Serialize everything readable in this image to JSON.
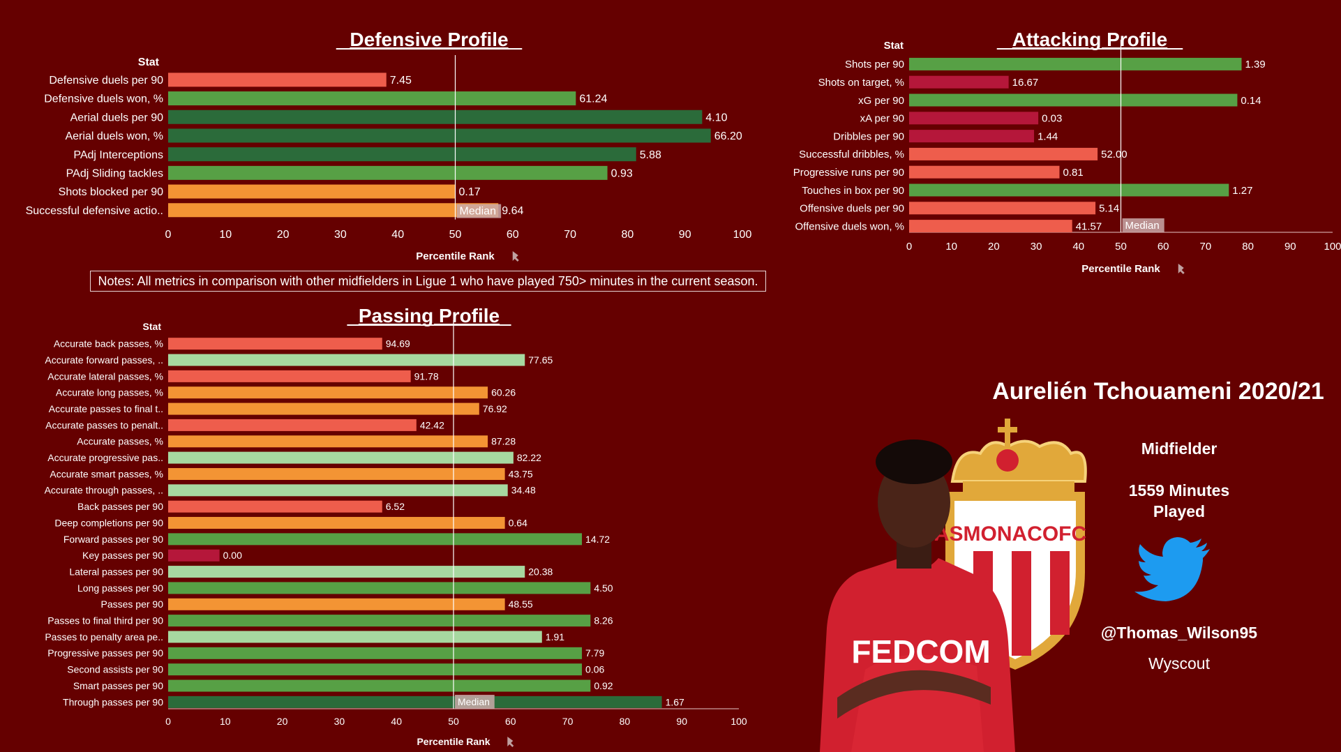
{
  "colors": {
    "background": "#650000",
    "dark_green": "#2b6b3a",
    "green": "#57a045",
    "light_green": "#a7d8a0",
    "orange": "#f39434",
    "salmon": "#ee5d4c",
    "crimson": "#b5173a",
    "median_line": "#ffffff"
  },
  "notes": "Notes: All metrics in comparison with other midfielders in Ligue 1 who have played 750> minutes in the current season.",
  "player": {
    "name": "Aurelién Tchouameni 2020/21",
    "position": "Midfielder",
    "minutes_line1": "1559 Minutes",
    "minutes_line2": "Played",
    "handle": "@Thomas_Wilson95",
    "source": "Wyscout",
    "club_crest_text": "ASMONACOFC",
    "shirt_sponsor": "FEDCOM",
    "twitter_icon": "twitter-bird-icon"
  },
  "chart_data": [
    {
      "id": "defensive",
      "type": "bar",
      "orientation": "horizontal",
      "title": "Defensive Profile",
      "category_header": "Stat",
      "xlabel": "Percentile Rank",
      "xlim": [
        0,
        100
      ],
      "xticks": [
        0,
        10,
        20,
        30,
        40,
        50,
        60,
        70,
        80,
        90,
        100
      ],
      "median_value": 50,
      "median_label": "Median",
      "grid": false,
      "rows": [
        {
          "label": "Defensive duels per 90",
          "percentile": 38,
          "value_label": "7.45",
          "color": "salmon"
        },
        {
          "label": "Defensive duels won, %",
          "percentile": 71,
          "value_label": "61.24",
          "color": "green"
        },
        {
          "label": "Aerial duels per 90",
          "percentile": 93,
          "value_label": "4.10",
          "color": "dark_green"
        },
        {
          "label": "Aerial duels won, %",
          "percentile": 94.5,
          "value_label": "66.20",
          "color": "dark_green"
        },
        {
          "label": "PAdj Interceptions",
          "percentile": 81.5,
          "value_label": "5.88",
          "color": "dark_green"
        },
        {
          "label": "PAdj Sliding tackles",
          "percentile": 76.5,
          "value_label": "0.93",
          "color": "green"
        },
        {
          "label": "Shots blocked per 90",
          "percentile": 50,
          "value_label": "0.17",
          "color": "orange"
        },
        {
          "label": "Successful defensive actio..",
          "percentile": 57.5,
          "value_label": "9.64",
          "color": "orange"
        }
      ]
    },
    {
      "id": "attacking",
      "type": "bar",
      "orientation": "horizontal",
      "title": "Attacking Profile",
      "category_header": "Stat",
      "xlabel": "Percentile Rank",
      "xlim": [
        0,
        100
      ],
      "xticks": [
        0,
        10,
        20,
        30,
        40,
        50,
        60,
        70,
        80,
        90,
        100
      ],
      "median_value": 50,
      "median_label": "Median",
      "grid": false,
      "rows": [
        {
          "label": "Shots per 90",
          "percentile": 78.5,
          "value_label": "1.39",
          "color": "green"
        },
        {
          "label": "Shots on target, %",
          "percentile": 23.5,
          "value_label": "16.67",
          "color": "crimson"
        },
        {
          "label": "xG per 90",
          "percentile": 77.5,
          "value_label": "0.14",
          "color": "green"
        },
        {
          "label": "xA per 90",
          "percentile": 30.5,
          "value_label": "0.03",
          "color": "crimson"
        },
        {
          "label": "Dribbles per 90",
          "percentile": 29.5,
          "value_label": "1.44",
          "color": "crimson"
        },
        {
          "label": "Successful dribbles, %",
          "percentile": 44.5,
          "value_label": "52.00",
          "color": "salmon"
        },
        {
          "label": "Progressive runs per 90",
          "percentile": 35.5,
          "value_label": "0.81",
          "color": "salmon"
        },
        {
          "label": "Touches in box per 90",
          "percentile": 75.5,
          "value_label": "1.27",
          "color": "green"
        },
        {
          "label": "Offensive duels per 90",
          "percentile": 44,
          "value_label": "5.14",
          "color": "salmon"
        },
        {
          "label": "Offensive duels won, %",
          "percentile": 38.5,
          "value_label": "41.57",
          "color": "salmon"
        }
      ]
    },
    {
      "id": "passing",
      "type": "bar",
      "orientation": "horizontal",
      "title": "Passing Profile",
      "category_header": "Stat",
      "xlabel": "Percentile Rank",
      "xlim": [
        0,
        100
      ],
      "xticks": [
        0,
        10,
        20,
        30,
        40,
        50,
        60,
        70,
        80,
        90,
        100
      ],
      "median_value": 50,
      "median_label": "Median",
      "grid": false,
      "rows": [
        {
          "label": "Accurate back passes, %",
          "percentile": 37.5,
          "value_label": "94.69",
          "color": "salmon"
        },
        {
          "label": "Accurate forward passes, ..",
          "percentile": 62.5,
          "value_label": "77.65",
          "color": "light_green"
        },
        {
          "label": "Accurate lateral passes, %",
          "percentile": 42.5,
          "value_label": "91.78",
          "color": "salmon"
        },
        {
          "label": "Accurate long passes, %",
          "percentile": 56,
          "value_label": "60.26",
          "color": "orange"
        },
        {
          "label": "Accurate passes to final t..",
          "percentile": 54.5,
          "value_label": "76.92",
          "color": "orange"
        },
        {
          "label": "Accurate passes to penalt..",
          "percentile": 43.5,
          "value_label": "42.42",
          "color": "salmon"
        },
        {
          "label": "Accurate passes, %",
          "percentile": 56,
          "value_label": "87.28",
          "color": "orange"
        },
        {
          "label": "Accurate progressive pas..",
          "percentile": 60.5,
          "value_label": "82.22",
          "color": "light_green"
        },
        {
          "label": "Accurate smart passes, %",
          "percentile": 59,
          "value_label": "43.75",
          "color": "orange"
        },
        {
          "label": "Accurate through passes, ..",
          "percentile": 59.5,
          "value_label": "34.48",
          "color": "light_green"
        },
        {
          "label": "Back passes per 90",
          "percentile": 37.5,
          "value_label": "6.52",
          "color": "salmon"
        },
        {
          "label": "Deep completions per 90",
          "percentile": 59,
          "value_label": "0.64",
          "color": "orange"
        },
        {
          "label": "Forward passes per 90",
          "percentile": 72.5,
          "value_label": "14.72",
          "color": "green"
        },
        {
          "label": "Key passes per 90",
          "percentile": 9,
          "value_label": "0.00",
          "color": "crimson"
        },
        {
          "label": "Lateral passes per 90",
          "percentile": 62.5,
          "value_label": "20.38",
          "color": "light_green"
        },
        {
          "label": "Long passes per 90",
          "percentile": 74,
          "value_label": "4.50",
          "color": "green"
        },
        {
          "label": "Passes per 90",
          "percentile": 59,
          "value_label": "48.55",
          "color": "orange"
        },
        {
          "label": "Passes to final third per 90",
          "percentile": 74,
          "value_label": "8.26",
          "color": "green"
        },
        {
          "label": "Passes to penalty area pe..",
          "percentile": 65.5,
          "value_label": "1.91",
          "color": "light_green"
        },
        {
          "label": "Progressive passes per 90",
          "percentile": 72.5,
          "value_label": "7.79",
          "color": "green"
        },
        {
          "label": "Second assists per 90",
          "percentile": 72.5,
          "value_label": "0.06",
          "color": "green"
        },
        {
          "label": "Smart passes per 90",
          "percentile": 74,
          "value_label": "0.92",
          "color": "green"
        },
        {
          "label": "Through passes per 90",
          "percentile": 86.5,
          "value_label": "1.67",
          "color": "dark_green"
        }
      ]
    }
  ]
}
